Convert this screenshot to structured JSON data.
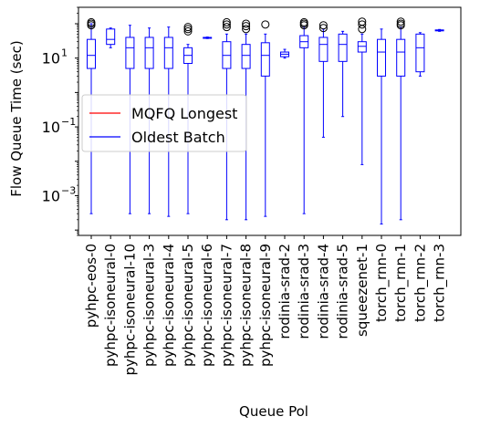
{
  "chart_data": {
    "type": "boxplot",
    "xlabel": "Queue Pol",
    "ylabel": "Flow Queue Time (sec)",
    "yscale": "log",
    "ylim": [
      7e-05,
      300
    ],
    "yticks": [
      {
        "value": 0.001,
        "label": "10^-3",
        "base": "10",
        "exp": "−3"
      },
      {
        "value": 0.1,
        "label": "10^-1",
        "base": "10",
        "exp": "−1"
      },
      {
        "value": 10,
        "label": "10^1",
        "base": "10",
        "exp": "1"
      }
    ],
    "grid": false,
    "legend": {
      "position": "center-left",
      "entries": [
        {
          "label": "MQFQ Longest",
          "color": "#ff0000"
        },
        {
          "label": "Oldest Batch",
          "color": "#0000ff"
        }
      ]
    },
    "series": [
      {
        "name": "Oldest Batch",
        "color": "#0000ff",
        "boxes": [
          {
            "category": "pyhpc-eos-0",
            "whislo": 0.0003,
            "q1": 5,
            "med": 12,
            "q3": 35,
            "whishi": 100,
            "fliers": [
              90,
              100,
              110
            ]
          },
          {
            "category": "pyhpc-isoneural-0",
            "whislo": 20,
            "q1": 25,
            "med": 35,
            "q3": 70,
            "whishi": 75,
            "fliers": []
          },
          {
            "category": "pyhpc-isoneural-10",
            "whislo": 0.0003,
            "q1": 5,
            "med": 20,
            "q3": 40,
            "whishi": 90,
            "fliers": []
          },
          {
            "category": "pyhpc-isoneural-3",
            "whislo": 0.0003,
            "q1": 5,
            "med": 20,
            "q3": 40,
            "whishi": 75,
            "fliers": []
          },
          {
            "category": "pyhpc-isoneural-4",
            "whislo": 0.00025,
            "q1": 5,
            "med": 20,
            "q3": 40,
            "whishi": 80,
            "fliers": []
          },
          {
            "category": "pyhpc-isoneural-5",
            "whislo": 0.0003,
            "q1": 7,
            "med": 12,
            "q3": 20,
            "whishi": 25,
            "fliers": [
              60,
              70,
              80
            ]
          },
          {
            "category": "pyhpc-isoneural-6",
            "whislo": 37,
            "q1": 38,
            "med": 39,
            "q3": 40,
            "whishi": 41,
            "fliers": []
          },
          {
            "category": "pyhpc-isoneural-7",
            "whislo": 0.0002,
            "q1": 5,
            "med": 12,
            "q3": 30,
            "whishi": 50,
            "fliers": [
              80,
              95,
              110
            ]
          },
          {
            "category": "pyhpc-isoneural-8",
            "whislo": 0.0002,
            "q1": 5,
            "med": 12,
            "q3": 25,
            "whishi": 50,
            "fliers": [
              70,
              85,
              100
            ]
          },
          {
            "category": "pyhpc-isoneural-9",
            "whislo": 0.00025,
            "q1": 3,
            "med": 12,
            "q3": 28,
            "whishi": 50,
            "fliers": [
              95
            ]
          },
          {
            "category": "rodinia-srad-2",
            "whislo": 10,
            "q1": 11,
            "med": 13,
            "q3": 15,
            "whishi": 18,
            "fliers": []
          },
          {
            "category": "rodinia-srad-3",
            "whislo": 0.0003,
            "q1": 20,
            "med": 30,
            "q3": 45,
            "whishi": 80,
            "fliers": [
              90,
              100,
              110
            ]
          },
          {
            "category": "rodinia-srad-4",
            "whislo": 0.05,
            "q1": 8,
            "med": 25,
            "q3": 40,
            "whishi": 70,
            "fliers": [
              75,
              90
            ]
          },
          {
            "category": "rodinia-srad-5",
            "whislo": 0.2,
            "q1": 8,
            "med": 25,
            "q3": 50,
            "whishi": 60,
            "fliers": []
          },
          {
            "category": "squeezenet-1",
            "whislo": 0.008,
            "q1": 15,
            "med": 22,
            "q3": 30,
            "whishi": 50,
            "fliers": [
              70,
              95,
              115
            ]
          },
          {
            "category": "torch_rnn-0",
            "whislo": 0.00015,
            "q1": 3,
            "med": 15,
            "q3": 35,
            "whishi": 70,
            "fliers": []
          },
          {
            "category": "torch_rnn-1",
            "whislo": 0.0002,
            "q1": 3,
            "med": 15,
            "q3": 35,
            "whishi": 80,
            "fliers": [
              90,
              100,
              115
            ]
          },
          {
            "category": "torch_rnn-2",
            "whislo": 3,
            "q1": 4,
            "med": 20,
            "q3": 50,
            "whishi": 55,
            "fliers": []
          },
          {
            "category": "torch_rnn-3",
            "whislo": 60,
            "q1": 62,
            "med": 64,
            "q3": 66,
            "whishi": 68,
            "fliers": []
          }
        ]
      }
    ]
  }
}
